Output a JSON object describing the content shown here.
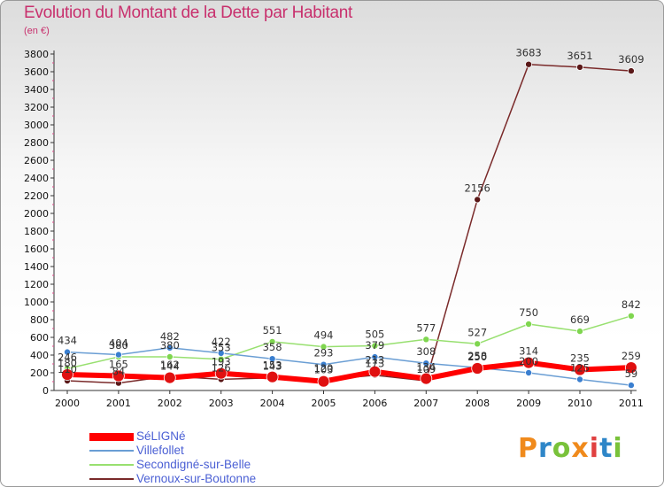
{
  "title": "Evolution du Montant de la Dette par Habitant",
  "unit": "(en €)",
  "logo": "Proxiti",
  "chart_data": {
    "type": "line",
    "title": "Evolution du Montant de la Dette par Habitant",
    "subtitle": "(en €)",
    "x": [
      "2000",
      "2001",
      "2002",
      "2003",
      "2004",
      "2005",
      "2006",
      "2007",
      "2008",
      "2009",
      "2010",
      "2011"
    ],
    "ylim": [
      0,
      3800
    ],
    "yticks": [
      0,
      200,
      400,
      600,
      800,
      1000,
      1200,
      1400,
      1600,
      1800,
      2000,
      2200,
      2400,
      2600,
      2800,
      3000,
      3200,
      3400,
      3600,
      3800
    ],
    "grid": false,
    "legend": "bottom-left",
    "series": [
      {
        "name": "SéLIGNé",
        "color": "#ff0000",
        "width": 6,
        "dot": "#e01010",
        "values": [
          180,
          165,
          144,
          193,
          153,
          103,
          213,
          134,
          250,
          314,
          235,
          259
        ]
      },
      {
        "name": "Villefollet",
        "color": "#6a9ed4",
        "width": 1.5,
        "dot": "#3a7fd0",
        "values": [
          434,
          404,
          482,
          422,
          358,
          293,
          379,
          308,
          258,
          200,
          125,
          59
        ]
      },
      {
        "name": "Secondigné-sur-Belle",
        "color": "#98e070",
        "width": 1.5,
        "dot": "#7fd64f",
        "values": [
          246,
          380,
          380,
          353,
          551,
          494,
          505,
          577,
          527,
          750,
          669,
          842
        ]
      },
      {
        "name": "Vernoux-sur-Boutonne",
        "color": "#7a2a2a",
        "width": 1.5,
        "dot": "#5a1818",
        "values": [
          110,
          84,
          162,
          126,
          143,
          120,
          173,
          109,
          2156,
          3683,
          3651,
          3609
        ]
      }
    ]
  }
}
